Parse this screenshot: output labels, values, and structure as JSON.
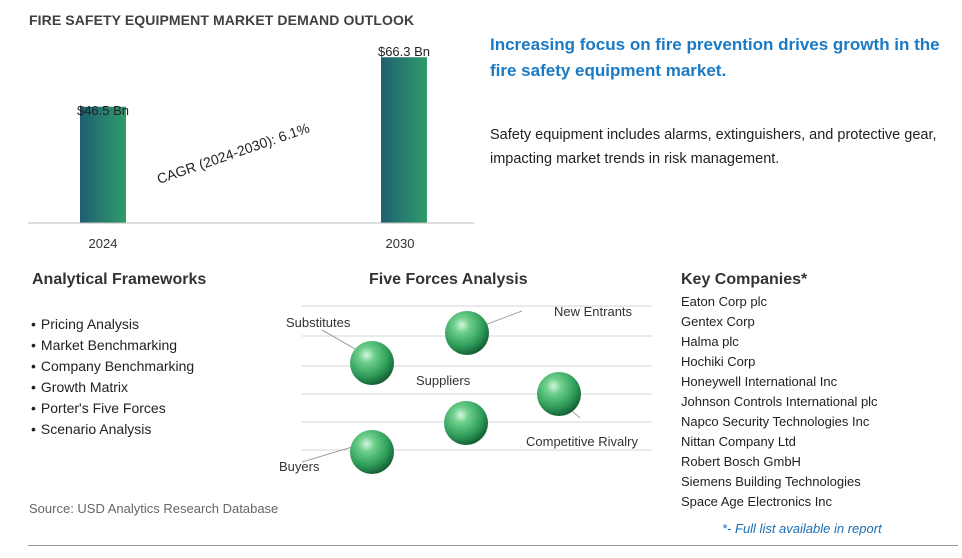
{
  "title": "FIRE SAFETY EQUIPMENT MARKET DEMAND OUTLOOK",
  "chart_data": {
    "type": "bar",
    "categories": [
      "2024",
      "2030"
    ],
    "values": [
      46.5,
      66.3
    ],
    "value_labels": [
      "$46.5  Bn",
      "$66.3  Bn"
    ],
    "annotation": "CAGR (2024-2030):  6.1%",
    "ylim": [
      0,
      70
    ],
    "xlabel": "",
    "ylabel": "",
    "grid": false,
    "colors": [
      "#1f5f73",
      "#2e9c6a"
    ]
  },
  "headline": "Increasing focus on fire prevention drives growth in the fire safety equipment market.",
  "description": "Safety equipment includes alarms, extinguishers, and protective gear, impacting market trends in risk management.",
  "frameworks": {
    "title": "Analytical Frameworks",
    "items": [
      "Pricing Analysis",
      "Market Benchmarking",
      "Company Benchmarking",
      "Growth Matrix",
      "Porter's Five Forces",
      "Scenario Analysis"
    ]
  },
  "five_forces": {
    "title": "Five Forces Analysis",
    "labels": {
      "substitutes": "Substitutes",
      "new_entrants": "New Entrants",
      "suppliers": "Suppliers",
      "competitive_rivalry": "Competitive Rivalry",
      "buyers": "Buyers"
    },
    "sphere_color": "#2e9c5a"
  },
  "companies": {
    "title": "Key Companies*",
    "items": [
      "Eaton Corp plc",
      "Gentex Corp",
      "Halma plc",
      "Hochiki Corp",
      "Honeywell International Inc",
      "Johnson Controls International plc",
      "Napco Security Technologies Inc",
      "Nittan Company Ltd",
      "Robert Bosch GmbH",
      "Siemens Building Technologies",
      "Space Age Electronics Inc"
    ],
    "footnote": "*- Full list available in report"
  },
  "source": "Source: USD Analytics Research Database"
}
